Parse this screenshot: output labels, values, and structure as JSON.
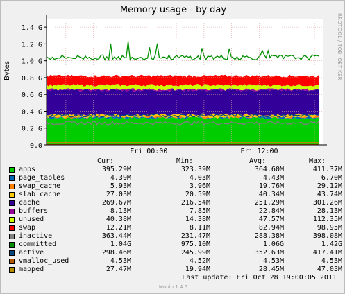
{
  "chart_data": {
    "type": "area",
    "title": "Memory usage - by day",
    "side_label": "RRDTOOL / TOBI OETIKER",
    "ylabel": "Bytes",
    "ylim": [
      0,
      1.5
    ],
    "y_ticks": [
      {
        "value": 0.0,
        "label": "0.0"
      },
      {
        "value": 0.2,
        "label": "0.2 G"
      },
      {
        "value": 0.4,
        "label": "0.4 G"
      },
      {
        "value": 0.6,
        "label": "0.6 G"
      },
      {
        "value": 0.8,
        "label": "0.8 G"
      },
      {
        "value": 1.0,
        "label": "1.0 G"
      },
      {
        "value": 1.2,
        "label": "1.2 G"
      },
      {
        "value": 1.4,
        "label": "1.4 G"
      }
    ],
    "x_ticks": [
      "Fri 00:00",
      "Fri 12:00"
    ],
    "grid": true,
    "series": [
      {
        "name": "apps",
        "color": "#00cc00",
        "stack_top": 0.32
      },
      {
        "name": "page_tables",
        "color": "#0066b3",
        "stack_top": 0.325
      },
      {
        "name": "swap_cache",
        "color": "#ff8000",
        "stack_top": 0.33
      },
      {
        "name": "slab_cache",
        "color": "#ffcc00",
        "stack_top": 0.36
      },
      {
        "name": "cache",
        "color": "#330099",
        "stack_top": 0.65
      },
      {
        "name": "buffers",
        "color": "#990099",
        "stack_top": 0.66
      },
      {
        "name": "unused",
        "color": "#ccff00",
        "stack_top": 0.71
      },
      {
        "name": "swap",
        "color": "#ff0000",
        "stack_top": 0.82
      },
      {
        "name": "inactive",
        "color": "#808080",
        "line_level": 0.26
      },
      {
        "name": "committed",
        "color": "#008f00",
        "line_level": 1.04
      },
      {
        "name": "active",
        "color": "#00487d",
        "line_level": 0.35
      },
      {
        "name": "vmalloc_used",
        "color": "#b35a00",
        "line_level": 0.0045
      },
      {
        "name": "mapped",
        "color": "#b38f00",
        "line_level": 0.028
      }
    ]
  },
  "legend": {
    "headers": [
      "Cur:",
      "Min:",
      "Avg:",
      "Max:"
    ],
    "rows": [
      {
        "name": "apps",
        "color": "#00cc00",
        "cur": "395.29M",
        "min": "323.39M",
        "avg": "364.60M",
        "max": "411.37M"
      },
      {
        "name": "page_tables",
        "color": "#0066b3",
        "cur": "4.39M",
        "min": "4.03M",
        "avg": "4.43M",
        "max": "6.70M"
      },
      {
        "name": "swap_cache",
        "color": "#ff8000",
        "cur": "5.93M",
        "min": "3.96M",
        "avg": "19.76M",
        "max": "29.12M"
      },
      {
        "name": "slab_cache",
        "color": "#ffcc00",
        "cur": "27.03M",
        "min": "20.59M",
        "avg": "40.34M",
        "max": "43.74M"
      },
      {
        "name": "cache",
        "color": "#330099",
        "cur": "269.67M",
        "min": "216.54M",
        "avg": "251.29M",
        "max": "301.26M"
      },
      {
        "name": "buffers",
        "color": "#990099",
        "cur": "8.13M",
        "min": "7.85M",
        "avg": "22.84M",
        "max": "28.13M"
      },
      {
        "name": "unused",
        "color": "#ccff00",
        "cur": "40.38M",
        "min": "14.38M",
        "avg": "47.57M",
        "max": "112.35M"
      },
      {
        "name": "swap",
        "color": "#ff0000",
        "cur": "12.21M",
        "min": "8.11M",
        "avg": "82.94M",
        "max": "98.95M"
      },
      {
        "name": "inactive",
        "color": "#808080",
        "cur": "363.44M",
        "min": "231.47M",
        "avg": "288.38M",
        "max": "398.08M"
      },
      {
        "name": "committed",
        "color": "#008f00",
        "cur": "1.04G",
        "min": "975.10M",
        "avg": "1.06G",
        "max": "1.42G"
      },
      {
        "name": "active",
        "color": "#00487d",
        "cur": "298.46M",
        "min": "245.99M",
        "avg": "352.63M",
        "max": "417.41M"
      },
      {
        "name": "vmalloc_used",
        "color": "#b35a00",
        "cur": "4.53M",
        "min": "4.52M",
        "avg": "4.53M",
        "max": "4.53M"
      },
      {
        "name": "mapped",
        "color": "#b38f00",
        "cur": "27.47M",
        "min": "19.94M",
        "avg": "28.45M",
        "max": "47.03M"
      }
    ]
  },
  "last_update": "Last update:  Fri Oct 28 19:00:05 2011",
  "footer": "Munin 1.4.5"
}
